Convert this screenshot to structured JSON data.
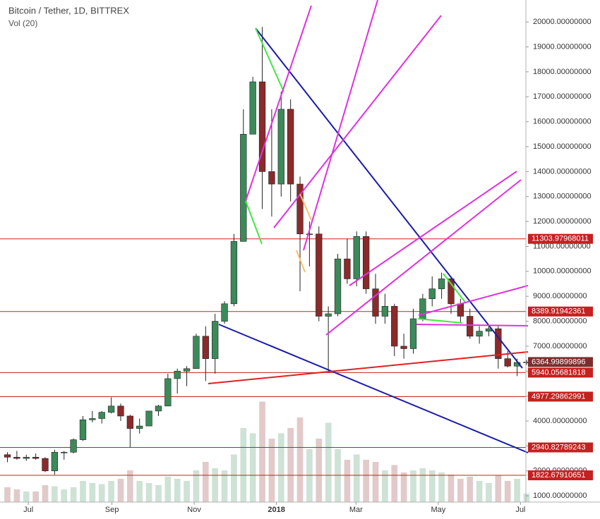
{
  "chart_data": {
    "type": "candlestick",
    "title": "Bitcoin / Tether, 1D, BITTREX",
    "subtitle": "Vol (20)",
    "up_color": "#3c8a5a",
    "down_color": "#8b2a2a",
    "wick_color": "#222222",
    "line_color": "#c62020",
    "grid": false,
    "xlim": [
      "2017-06-10",
      "2018-07-05"
    ],
    "xticks": [
      {
        "value": "2017-07-01",
        "label": "Jul"
      },
      {
        "value": "2017-09-01",
        "label": "Sep"
      },
      {
        "value": "2017-11-01",
        "label": "Nov"
      },
      {
        "value": "2018-01-01",
        "label": "2018"
      },
      {
        "value": "2018-03-01",
        "label": "Mar"
      },
      {
        "value": "2018-05-01",
        "label": "May"
      },
      {
        "value": "2018-07-01",
        "label": "Jul"
      }
    ],
    "ylim": [
      750,
      20880
    ],
    "yticks": [
      {
        "value": 1000,
        "label": "1000.00000000"
      },
      {
        "value": 2000,
        "label": "2000.00000000"
      },
      {
        "value": 3000,
        "label": "3000.00000000"
      },
      {
        "value": 4000,
        "label": "4000.00000000"
      },
      {
        "value": 5000,
        "label": "5000.00000000"
      },
      {
        "value": 6000,
        "label": "6000.00000000"
      },
      {
        "value": 7000,
        "label": "7000.00000000"
      },
      {
        "value": 8000,
        "label": "8000.00000000"
      },
      {
        "value": 9000,
        "label": "9000.00000000"
      },
      {
        "value": 10000,
        "label": "10000.00000000"
      },
      {
        "value": 11000,
        "label": "11000.00000000"
      },
      {
        "value": 12000,
        "label": "12000.00000000"
      },
      {
        "value": 13000,
        "label": "13000.00000000"
      },
      {
        "value": 14000,
        "label": "14000.00000000"
      },
      {
        "value": 15000,
        "label": "15000.00000000"
      },
      {
        "value": 16000,
        "label": "16000.00000000"
      },
      {
        "value": 17000,
        "label": "17000.00000000"
      },
      {
        "value": 18000,
        "label": "18000.00000000"
      },
      {
        "value": 19000,
        "label": "19000.00000000"
      },
      {
        "value": 20000,
        "label": "20000.00000000"
      }
    ],
    "price_lines": [
      11303.97968011,
      8389.91942361,
      5940.05681818,
      4977.29862991,
      2940.82789243,
      1822.67910651
    ],
    "last_price": 6364.99899896,
    "volume_ylim": [
      0,
      100
    ],
    "x": [
      "2017-06-12",
      "2017-06-19",
      "2017-06-26",
      "2017-07-03",
      "2017-07-10",
      "2017-07-17",
      "2017-07-24",
      "2017-07-31",
      "2017-08-07",
      "2017-08-14",
      "2017-08-21",
      "2017-08-28",
      "2017-09-04",
      "2017-09-11",
      "2017-09-18",
      "2017-09-25",
      "2017-10-02",
      "2017-10-09",
      "2017-10-16",
      "2017-10-23",
      "2017-10-30",
      "2017-11-06",
      "2017-11-13",
      "2017-11-20",
      "2017-11-27",
      "2017-12-04",
      "2017-12-11",
      "2017-12-18",
      "2017-12-25",
      "2018-01-01",
      "2018-01-08",
      "2018-01-15",
      "2018-01-22",
      "2018-01-29",
      "2018-02-05",
      "2018-02-12",
      "2018-02-19",
      "2018-02-26",
      "2018-03-05",
      "2018-03-12",
      "2018-03-19",
      "2018-03-26",
      "2018-04-02",
      "2018-04-09",
      "2018-04-16",
      "2018-04-23",
      "2018-04-30",
      "2018-05-07",
      "2018-05-14",
      "2018-05-21",
      "2018-05-28",
      "2018-06-04",
      "2018-06-11",
      "2018-06-18",
      "2018-06-25",
      "2018-07-02"
    ],
    "open": [
      2650,
      2550,
      2500,
      2550,
      2500,
      2000,
      2750,
      2750,
      3250,
      4050,
      4100,
      4350,
      4600,
      4200,
      3700,
      3800,
      4400,
      4600,
      5700,
      6000,
      6100,
      7400,
      6500,
      8000,
      8700,
      11200,
      15500,
      17600,
      14000,
      13500,
      16500,
      13500,
      11500,
      11500,
      8200,
      8300,
      10500,
      9700,
      11400,
      9300,
      8200,
      8600,
      7000,
      6900,
      8100,
      8900,
      9300,
      9700,
      8700,
      8200,
      7400,
      7600,
      7700,
      6500,
      6200,
      6350
    ],
    "high": [
      2750,
      2800,
      2650,
      2700,
      2550,
      2850,
      2800,
      3300,
      4200,
      4400,
      4400,
      4950,
      4700,
      4250,
      4100,
      4400,
      4650,
      5900,
      6100,
      6200,
      7500,
      7800,
      8300,
      8800,
      11500,
      16500,
      17800,
      19800,
      16500,
      17200,
      16900,
      13800,
      12000,
      11800,
      8600,
      10700,
      11300,
      11600,
      11600,
      9900,
      9100,
      8700,
      7500,
      8500,
      9100,
      9800,
      9950,
      9750,
      8900,
      8500,
      7800,
      7800,
      7800,
      6800,
      6500,
      6450
    ],
    "low": [
      2350,
      2450,
      2400,
      2450,
      1950,
      1850,
      2450,
      2700,
      3200,
      3950,
      3900,
      4300,
      4000,
      2950,
      3500,
      3800,
      4200,
      4600,
      5100,
      5400,
      6100,
      5600,
      5900,
      7900,
      8600,
      11200,
      15500,
      12500,
      12200,
      13000,
      12800,
      9200,
      10200,
      8000,
      6000,
      8200,
      9500,
      9400,
      9100,
      7900,
      7900,
      6600,
      6500,
      6700,
      8000,
      8600,
      8900,
      8300,
      7950,
      7300,
      7100,
      7400,
      6100,
      6150,
      5800,
      6250
    ],
    "close": [
      2550,
      2500,
      2550,
      2500,
      2000,
      2750,
      2750,
      3250,
      4050,
      4100,
      4350,
      4600,
      4200,
      3700,
      3800,
      4400,
      4600,
      5700,
      6000,
      6100,
      7400,
      6500,
      8000,
      8700,
      11200,
      15500,
      17600,
      14000,
      13500,
      16500,
      13500,
      11500,
      11500,
      8200,
      8300,
      10500,
      9700,
      11400,
      9300,
      8200,
      8600,
      7000,
      6900,
      8100,
      8900,
      9300,
      9700,
      8700,
      8200,
      7400,
      7600,
      7700,
      6500,
      6200,
      6350,
      6365
    ],
    "volume": [
      14,
      12,
      10,
      10,
      16,
      15,
      12,
      14,
      20,
      18,
      17,
      20,
      22,
      30,
      20,
      18,
      16,
      24,
      22,
      20,
      30,
      38,
      32,
      30,
      45,
      70,
      65,
      95,
      60,
      65,
      70,
      80,
      50,
      60,
      75,
      50,
      40,
      45,
      40,
      38,
      30,
      35,
      28,
      30,
      32,
      30,
      28,
      26,
      22,
      24,
      20,
      18,
      25,
      20,
      22,
      8
    ]
  }
}
